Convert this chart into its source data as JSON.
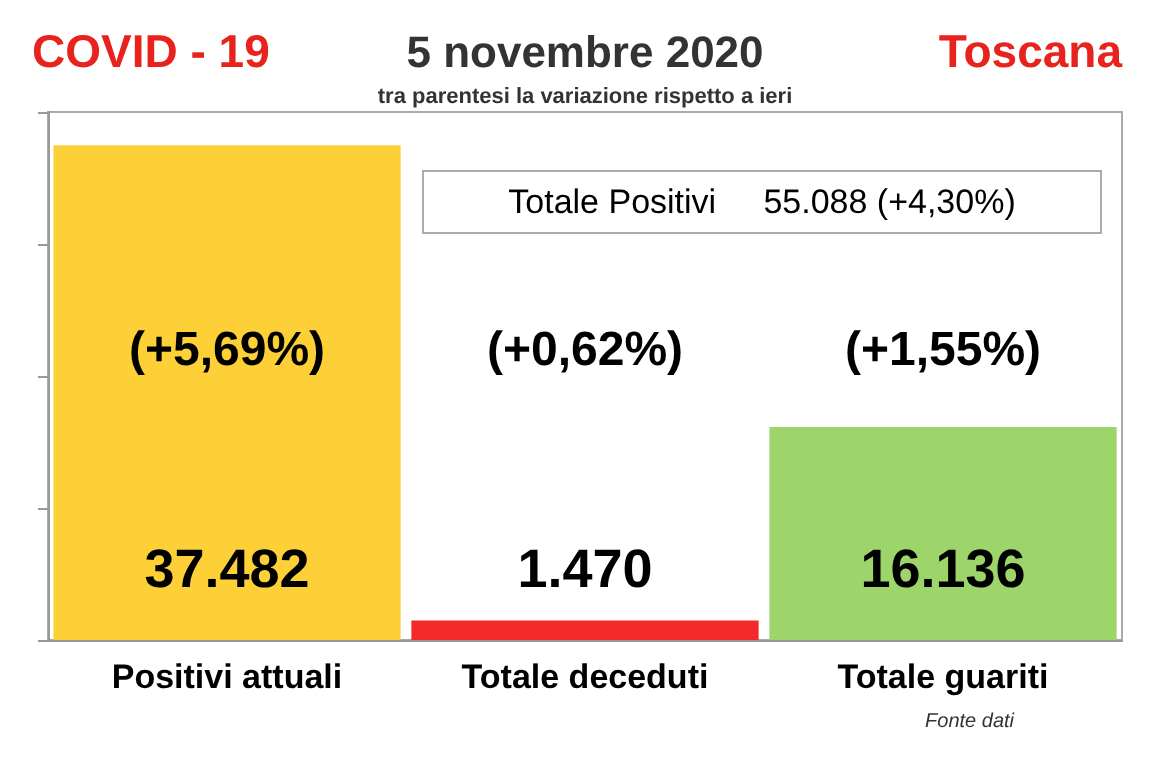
{
  "chart_data": {
    "type": "bar",
    "title": "5 novembre 2020",
    "subtitle": "tra parentesi la variazione rispetto a ieri",
    "categories": [
      "Positivi attuali",
      "Totale deceduti",
      "Totale guariti"
    ],
    "values": [
      37482,
      1470,
      16136
    ],
    "colors": [
      "#fdd037",
      "#f42a2a",
      "#9ed56b"
    ],
    "value_labels": [
      "37.482",
      "1.470",
      "16.136"
    ],
    "annotations": [
      "COVID - 19",
      "Toscana",
      "Totale Positivi     55.088 (+4,30%)",
      "Fonte dati",
      "(+5,69%)",
      "(+0,62%)",
      "(+1,55%)"
    ],
    "grid": false,
    "tick_labels": "x"
  }
}
